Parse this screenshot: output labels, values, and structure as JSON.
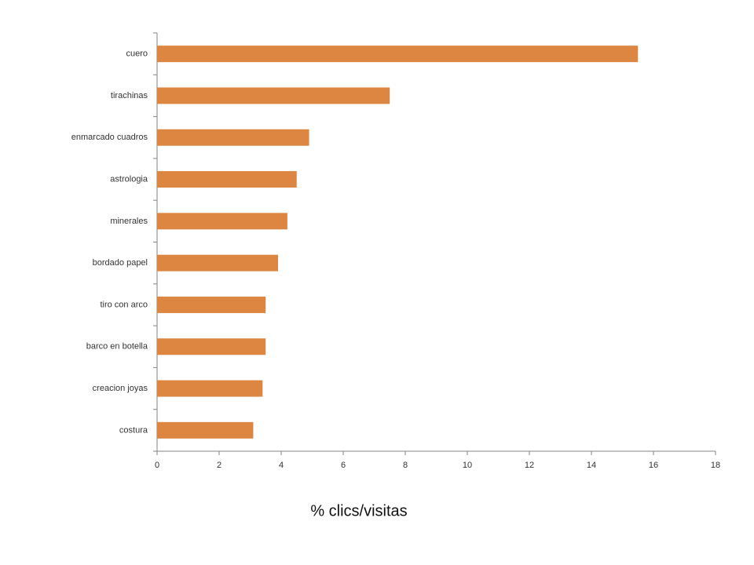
{
  "chart_data": {
    "type": "bar",
    "orientation": "horizontal",
    "x_label": "% clics/visitas",
    "categories": [
      "cuero",
      "tirachinas",
      "enmarcado cuadros",
      "astrologia",
      "minerales",
      "bordado papel",
      "tiro con arco",
      "barco en botella",
      "creacion joyas",
      "costura"
    ],
    "values": [
      15.5,
      7.5,
      4.9,
      4.5,
      4.2,
      3.9,
      3.5,
      3.5,
      3.4,
      3.1
    ],
    "color": "#dd8642",
    "xlim": [
      0,
      18
    ],
    "xticks": [
      0,
      2,
      4,
      6,
      8,
      10,
      12,
      14,
      16,
      18
    ],
    "grid": false
  }
}
